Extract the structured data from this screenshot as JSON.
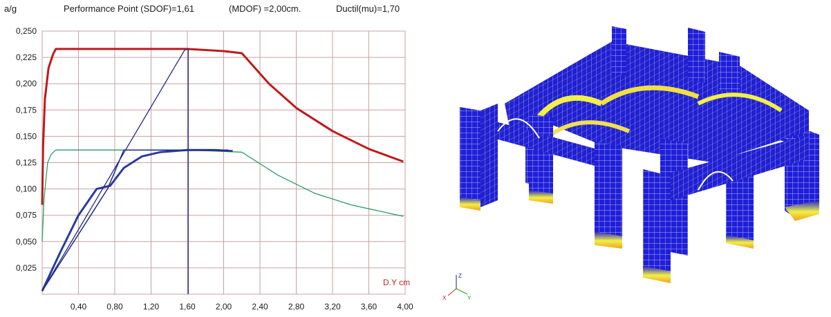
{
  "header": {
    "ylabel": "a/g",
    "performance_point": "Performance  Point (SDOF)=1,61",
    "mdof": "(MDOF) =2,00cm.",
    "ductility": "Ductil(mu)=1,70"
  },
  "chart_data": {
    "type": "line",
    "ylabel": "a/g",
    "xlabel": "D.Y cm",
    "xlim": [
      0,
      4.0
    ],
    "ylim": [
      0,
      0.25
    ],
    "grid": true,
    "x_ticks": [
      "0,40",
      "0,80",
      "1,20",
      "1,60",
      "2,00",
      "2,40",
      "2,80",
      "3,20",
      "3,60",
      "4,00"
    ],
    "y_ticks": [
      "0,025",
      "0,050",
      "0,075",
      "0,100",
      "0,125",
      "0,150",
      "0,175",
      "0,200",
      "0,225",
      "0,250"
    ],
    "colors": {
      "demand_elastic": "#c01818",
      "demand_reduced": "#2a9a6a",
      "capacity": "#2a3aa0",
      "bilinear": "#1e2a80",
      "grid": "#c8a0a0"
    },
    "series": [
      {
        "id": "demand_elastic",
        "x": [
          0.0,
          0.01,
          0.03,
          0.07,
          0.12,
          0.15,
          0.5,
          1.0,
          1.6,
          2.0,
          2.2,
          2.5,
          2.8,
          3.2,
          3.6,
          3.98
        ],
        "y": [
          0.085,
          0.14,
          0.185,
          0.215,
          0.228,
          0.233,
          0.233,
          0.233,
          0.233,
          0.231,
          0.229,
          0.2,
          0.177,
          0.155,
          0.138,
          0.126
        ]
      },
      {
        "id": "demand_reduced",
        "x": [
          0.0,
          0.02,
          0.06,
          0.1,
          0.15,
          0.5,
          1.0,
          1.6,
          2.2,
          2.6,
          3.0,
          3.4,
          3.98
        ],
        "y": [
          0.05,
          0.09,
          0.125,
          0.133,
          0.137,
          0.137,
          0.137,
          0.137,
          0.135,
          0.113,
          0.096,
          0.085,
          0.074
        ]
      },
      {
        "id": "capacity",
        "x": [
          0.0,
          0.2,
          0.4,
          0.6,
          0.75,
          0.9,
          1.1,
          1.3,
          1.6,
          1.9,
          2.1
        ],
        "y": [
          0.003,
          0.04,
          0.075,
          0.1,
          0.103,
          0.12,
          0.131,
          0.135,
          0.137,
          0.137,
          0.136
        ]
      },
      {
        "id": "bilinear",
        "x": [
          0.0,
          0.72,
          0.9,
          1.1,
          1.6,
          2.05
        ],
        "y": [
          0.003,
          0.1,
          0.137,
          0.137,
          0.137,
          0.137
        ]
      },
      {
        "id": "elastic_line",
        "x": [
          0.0,
          1.57,
          1.61,
          1.61
        ],
        "y": [
          0.003,
          0.232,
          0.233,
          0.0
        ]
      }
    ]
  },
  "model": {
    "axis_labels": {
      "z": "Z",
      "x": "X",
      "y": "Y"
    },
    "colors": {
      "body": "#1f1fd8",
      "mesh": "#e8e8ff",
      "hot": "#f2f046",
      "warm": "#f2a020",
      "edge": "#ffffff"
    }
  }
}
